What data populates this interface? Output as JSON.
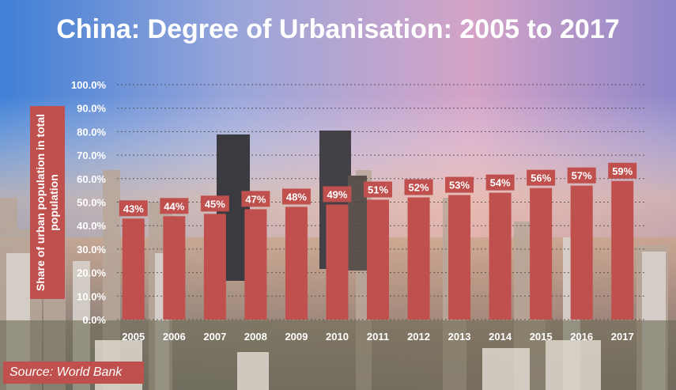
{
  "title": "China: Degree of Urbanisation: 2005 to 2017",
  "source": "Source: World Bank",
  "colors": {
    "bar": "#c0504d",
    "label_bg": "#c0504d",
    "text": "#ffffff",
    "gridline": "#444444"
  },
  "chart_data": {
    "type": "bar",
    "title": "China: Degree of Urbanisation: 2005 to 2017",
    "xlabel": "",
    "ylabel": "Share of urban population in total population",
    "ylim": [
      0,
      100
    ],
    "grid": true,
    "categories": [
      "2005",
      "2006",
      "2007",
      "2008",
      "2009",
      "2010",
      "2011",
      "2012",
      "2013",
      "2014",
      "2015",
      "2016",
      "2017"
    ],
    "values": [
      43,
      44,
      45,
      47,
      48,
      49,
      51,
      52,
      53,
      54,
      56,
      57,
      59
    ],
    "data_labels": [
      "43%",
      "44%",
      "45%",
      "47%",
      "48%",
      "49%",
      "51%",
      "52%",
      "53%",
      "54%",
      "56%",
      "57%",
      "59%"
    ],
    "y_ticks": [
      "0.0%",
      "10.0%",
      "20.0%",
      "30.0%",
      "40.0%",
      "50.0%",
      "60.0%",
      "70.0%",
      "80.0%",
      "90.0%",
      "100.0%"
    ]
  }
}
